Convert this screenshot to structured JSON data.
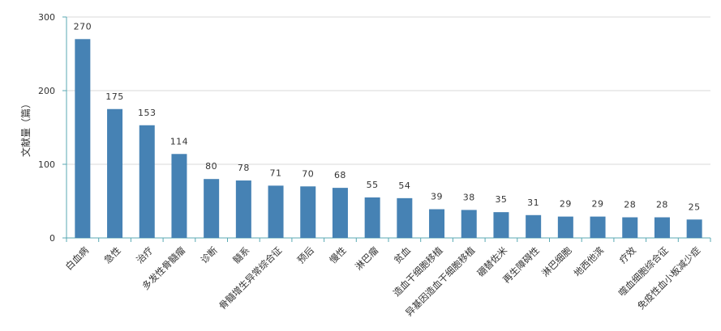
{
  "chart_data": {
    "type": "bar",
    "ylabel": "文献量（篇）",
    "ylim": [
      0,
      300
    ],
    "yticks": [
      0,
      100,
      200,
      300
    ],
    "grid": true,
    "bar_color": "#4682b4",
    "categories": [
      "白血病",
      "急性",
      "治疗",
      "多发性骨髓瘤",
      "诊断",
      "髓系",
      "骨髓增生异常综合征",
      "预后",
      "慢性",
      "淋巴瘤",
      "贫血",
      "造血干细胞移植",
      "异基因造血干细胞移植",
      "硼替佐米",
      "再生障碍性",
      "淋巴细胞",
      "地西他滨",
      "疗效",
      "噬血细胞综合征",
      "免疫性血小板减少症"
    ],
    "values": [
      270,
      175,
      153,
      114,
      80,
      78,
      71,
      70,
      68,
      55,
      54,
      39,
      38,
      35,
      31,
      29,
      29,
      28,
      28,
      25
    ]
  }
}
